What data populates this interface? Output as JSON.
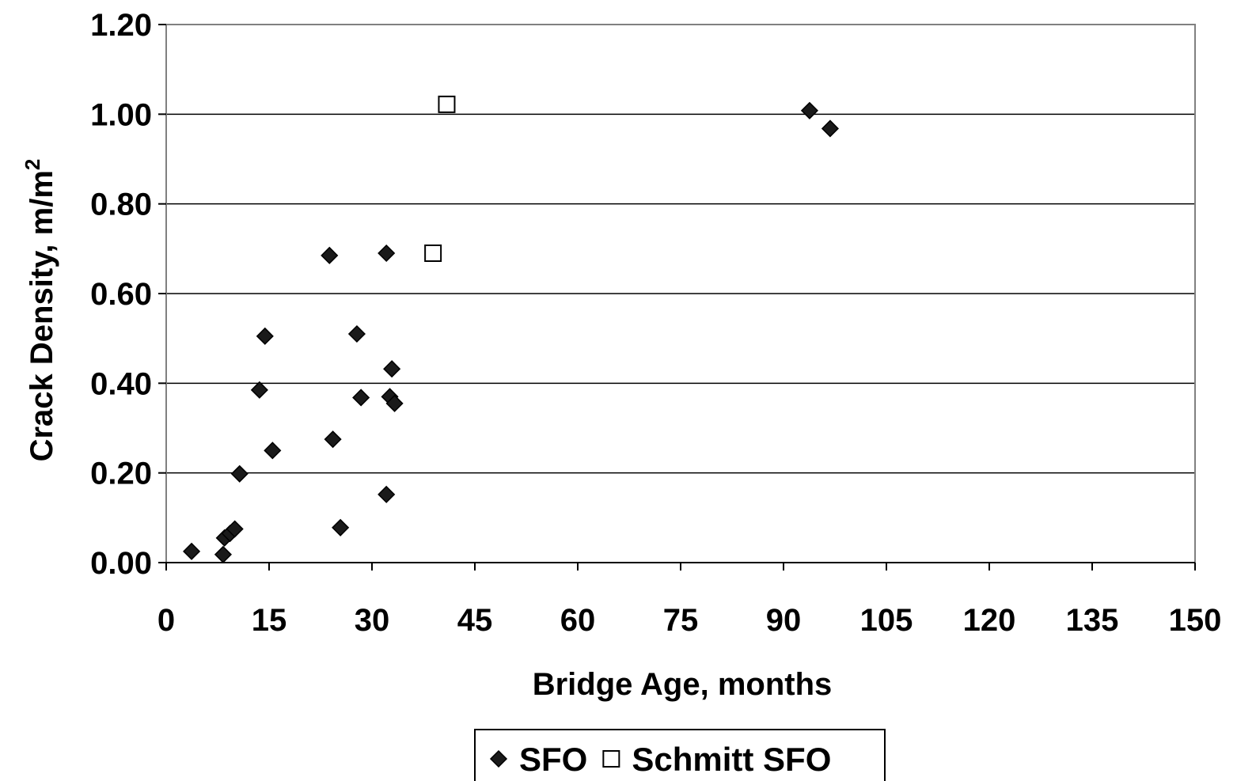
{
  "chart_data": {
    "type": "scatter",
    "title": "",
    "xlabel": "Bridge Age, months",
    "ylabel": "Crack Density, m/m",
    "ylabel_superscript": "2",
    "xlim": [
      0,
      150
    ],
    "ylim": [
      0,
      1.2
    ],
    "x_ticks": [
      "0",
      "15",
      "30",
      "45",
      "60",
      "75",
      "90",
      "105",
      "120",
      "135",
      "150"
    ],
    "y_ticks": [
      "0.00",
      "0.20",
      "0.40",
      "0.60",
      "0.80",
      "1.00",
      "1.20"
    ],
    "grid": "horizontal",
    "legend_position": "bottom",
    "series": [
      {
        "name": "SFO",
        "marker": "diamond-filled",
        "color": "#000000",
        "points": [
          {
            "x": 3.7,
            "y": 0.025
          },
          {
            "x": 8.3,
            "y": 0.018
          },
          {
            "x": 8.5,
            "y": 0.055
          },
          {
            "x": 9.3,
            "y": 0.065
          },
          {
            "x": 10.0,
            "y": 0.075
          },
          {
            "x": 10.7,
            "y": 0.198
          },
          {
            "x": 13.6,
            "y": 0.385
          },
          {
            "x": 14.4,
            "y": 0.505
          },
          {
            "x": 15.5,
            "y": 0.25
          },
          {
            "x": 23.8,
            "y": 0.685
          },
          {
            "x": 24.3,
            "y": 0.275
          },
          {
            "x": 25.4,
            "y": 0.078
          },
          {
            "x": 27.8,
            "y": 0.51
          },
          {
            "x": 28.4,
            "y": 0.368
          },
          {
            "x": 32.1,
            "y": 0.69
          },
          {
            "x": 32.1,
            "y": 0.152
          },
          {
            "x": 32.6,
            "y": 0.37
          },
          {
            "x": 32.9,
            "y": 0.432
          },
          {
            "x": 33.3,
            "y": 0.355
          },
          {
            "x": 93.8,
            "y": 1.008
          },
          {
            "x": 96.8,
            "y": 0.968
          }
        ]
      },
      {
        "name": "Schmitt SFO",
        "marker": "square-open",
        "color": "#000000",
        "points": [
          {
            "x": 38.9,
            "y": 0.69
          },
          {
            "x": 40.9,
            "y": 1.022
          }
        ]
      }
    ]
  }
}
